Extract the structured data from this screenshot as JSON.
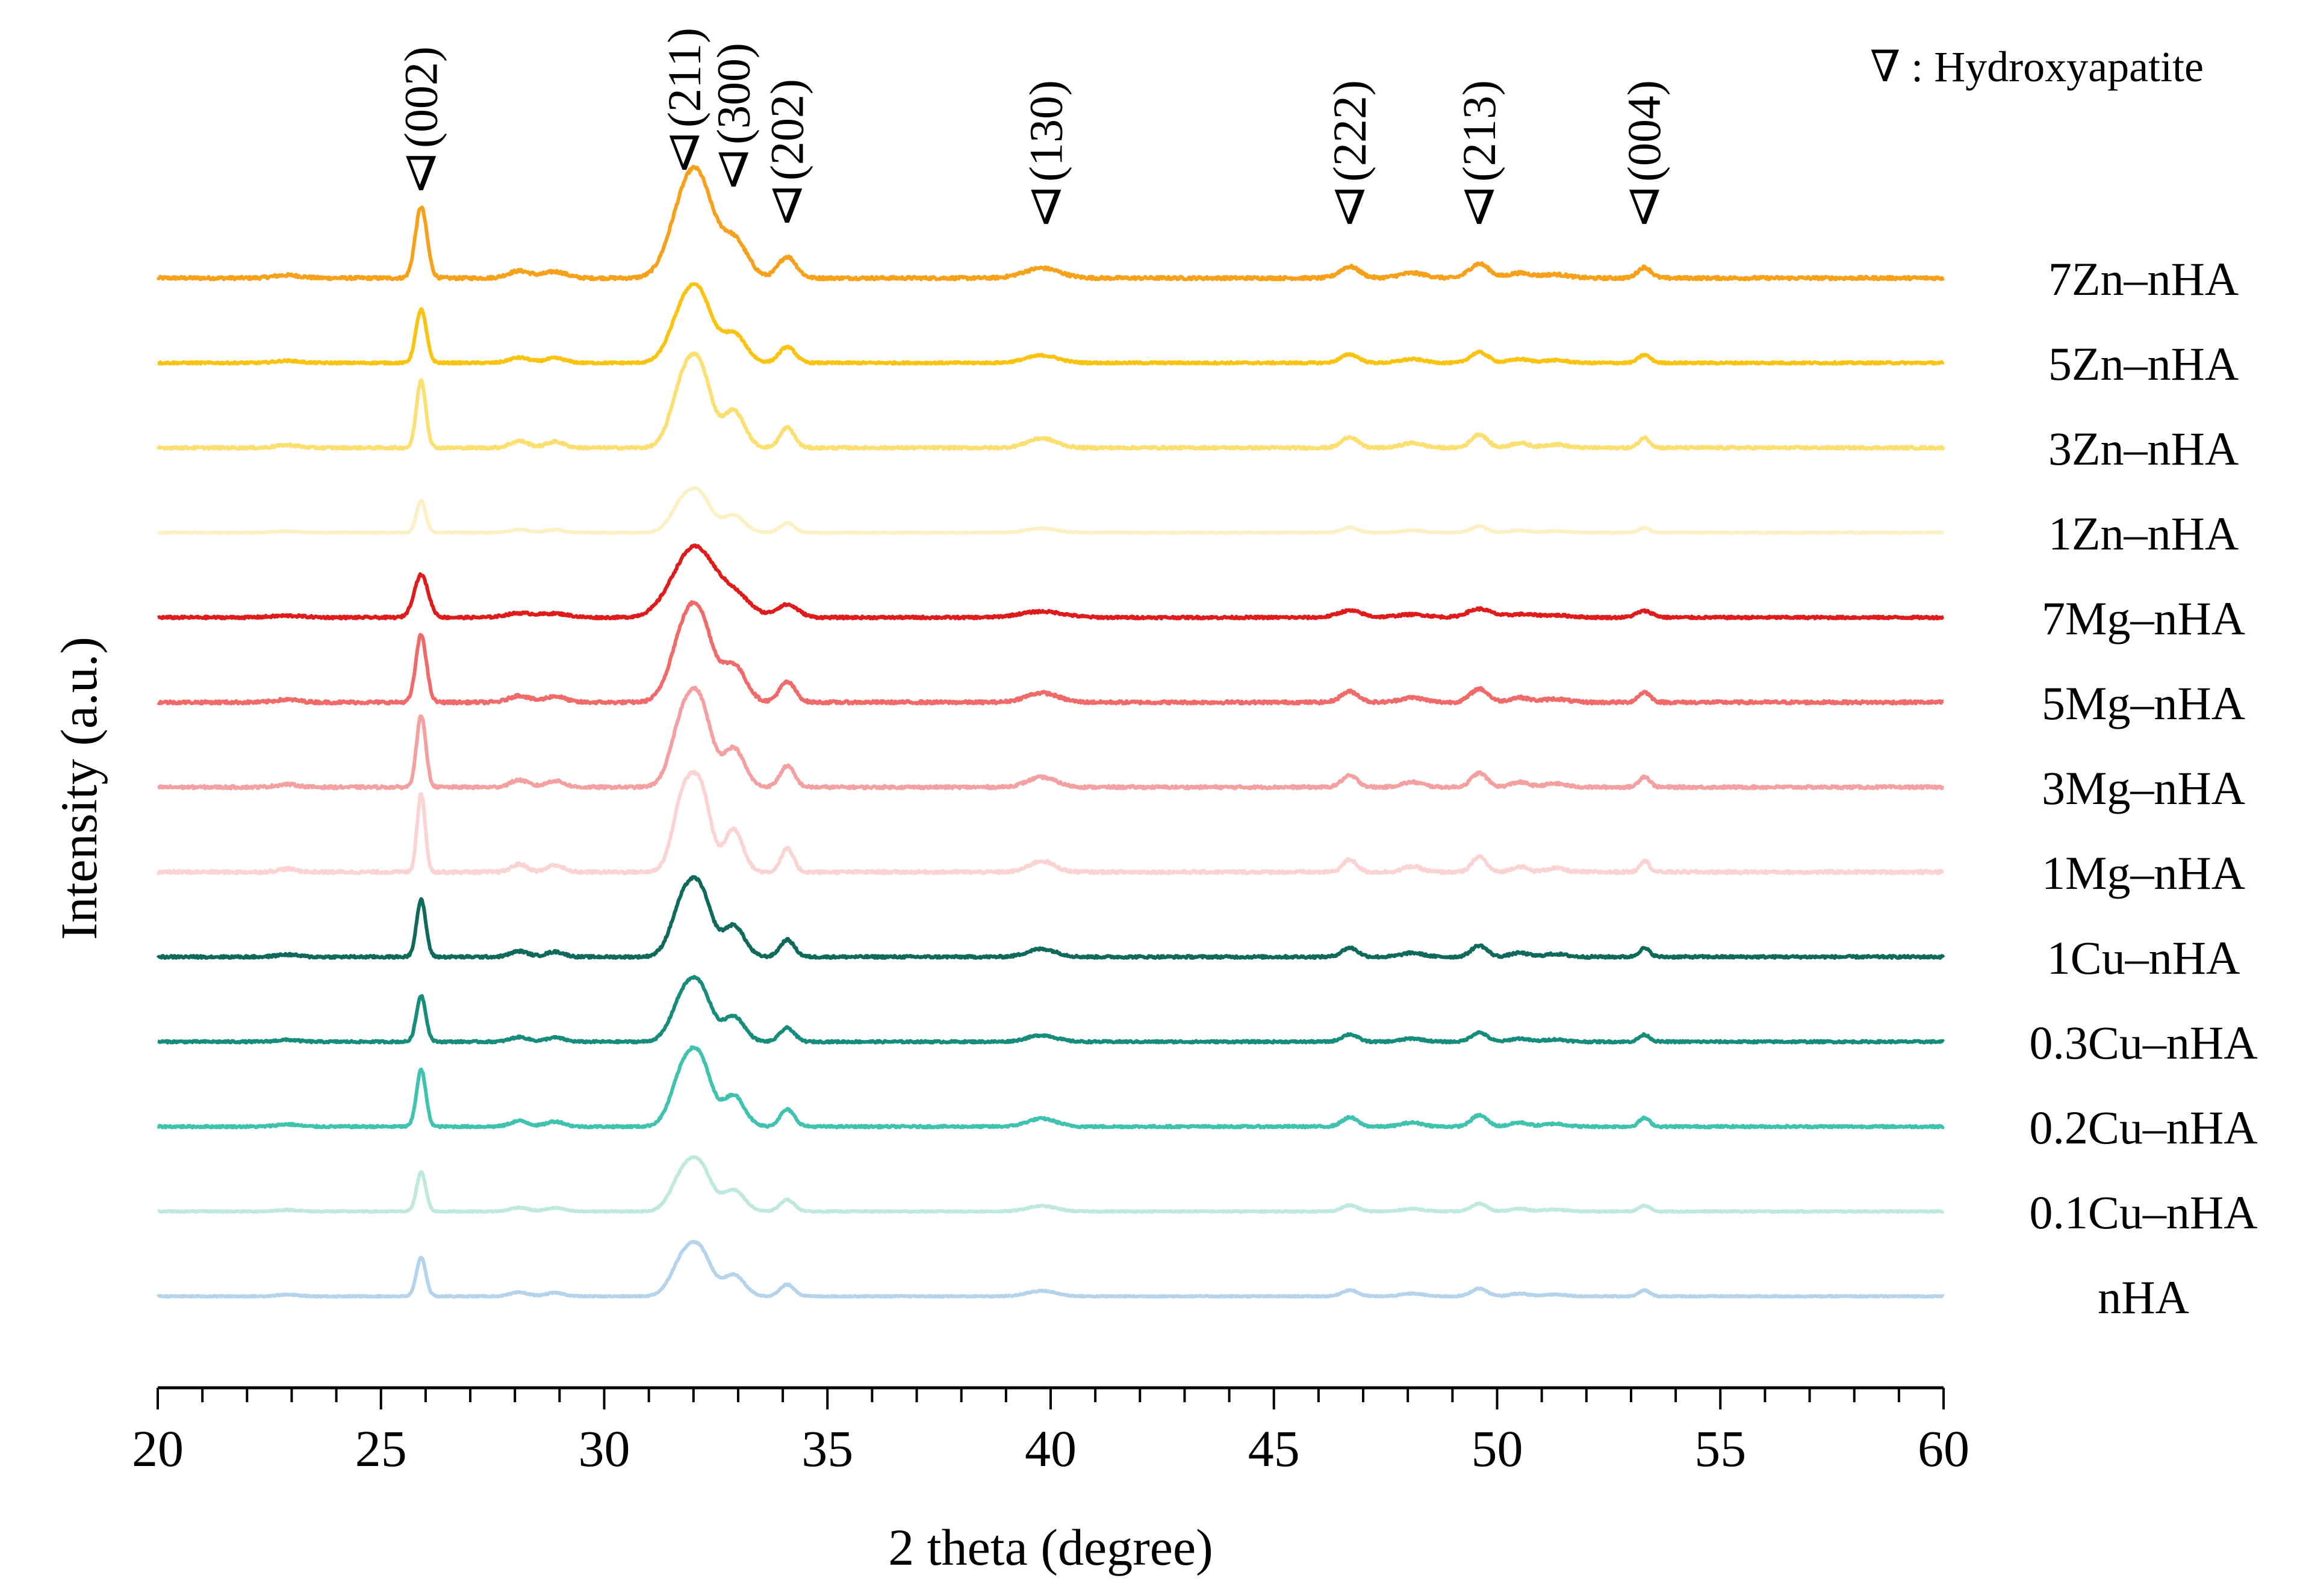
{
  "chart_data": {
    "type": "line",
    "title": "",
    "xlabel": "2 theta (degree)",
    "ylabel": "Intensity (a.u.)",
    "xlim": [
      20,
      60
    ],
    "x_ticks": [
      20,
      25,
      30,
      35,
      40,
      45,
      50,
      55,
      60
    ],
    "x_tick_labels": [
      "20",
      "25",
      "30",
      "35",
      "40",
      "45",
      "50",
      "55",
      "60"
    ],
    "grid": false,
    "legend_note": "∇ : Hydroxyapatite",
    "marker_symbol": "∇",
    "peaks": [
      {
        "hkl": "(002)",
        "two_theta": 25.9
      },
      {
        "hkl": "(211)",
        "two_theta": 31.8
      },
      {
        "hkl": "(300)",
        "two_theta": 32.9
      },
      {
        "hkl": "(202)",
        "two_theta": 34.1
      },
      {
        "hkl": "(130)",
        "two_theta": 39.9
      },
      {
        "hkl": "(222)",
        "two_theta": 46.7
      },
      {
        "hkl": "(213)",
        "two_theta": 49.6
      },
      {
        "hkl": "(004)",
        "two_theta": 53.3
      }
    ],
    "series": [
      {
        "name": "7Zn–nHA",
        "color": "#f7a11a",
        "amp": 1.0,
        "noise": 0.7,
        "broad": 1.0
      },
      {
        "name": "5Zn–nHA",
        "color": "#f9c30f",
        "amp": 0.75,
        "noise": 0.6,
        "broad": 0.9
      },
      {
        "name": "3Zn–nHA",
        "color": "#fbdf71",
        "amp": 0.95,
        "noise": 0.6,
        "broad": 0.8
      },
      {
        "name": "1Zn–nHA",
        "color": "#fdf0c5",
        "amp": 0.45,
        "noise": 0.5,
        "broad": 0.8
      },
      {
        "name": "7Mg–nHA",
        "color": "#e01b1b",
        "amp": 0.6,
        "noise": 0.9,
        "broad": 1.2
      },
      {
        "name": "5Mg–nHA",
        "color": "#f06a6a",
        "amp": 0.95,
        "noise": 0.7,
        "broad": 0.9
      },
      {
        "name": "3Mg–nHA",
        "color": "#f5a0a0",
        "amp": 1.0,
        "noise": 0.6,
        "broad": 0.8
      },
      {
        "name": "1Mg–nHA",
        "color": "#fcd3d3",
        "amp": 1.1,
        "noise": 0.6,
        "broad": 0.7
      },
      {
        "name": "1Cu–nHA",
        "color": "#0f6a5c",
        "amp": 0.8,
        "noise": 0.7,
        "broad": 0.8
      },
      {
        "name": "0.3Cu–nHA",
        "color": "#168c7b",
        "amp": 0.65,
        "noise": 0.7,
        "broad": 0.8
      },
      {
        "name": "0.2Cu–nHA",
        "color": "#3fc2ae",
        "amp": 0.8,
        "noise": 0.6,
        "broad": 0.8
      },
      {
        "name": "0.1Cu–nHA",
        "color": "#bfe9df",
        "amp": 0.55,
        "noise": 0.5,
        "broad": 0.8
      },
      {
        "name": "nHA",
        "color": "#b5d4ec",
        "amp": 0.55,
        "noise": 0.5,
        "broad": 0.8
      }
    ]
  }
}
